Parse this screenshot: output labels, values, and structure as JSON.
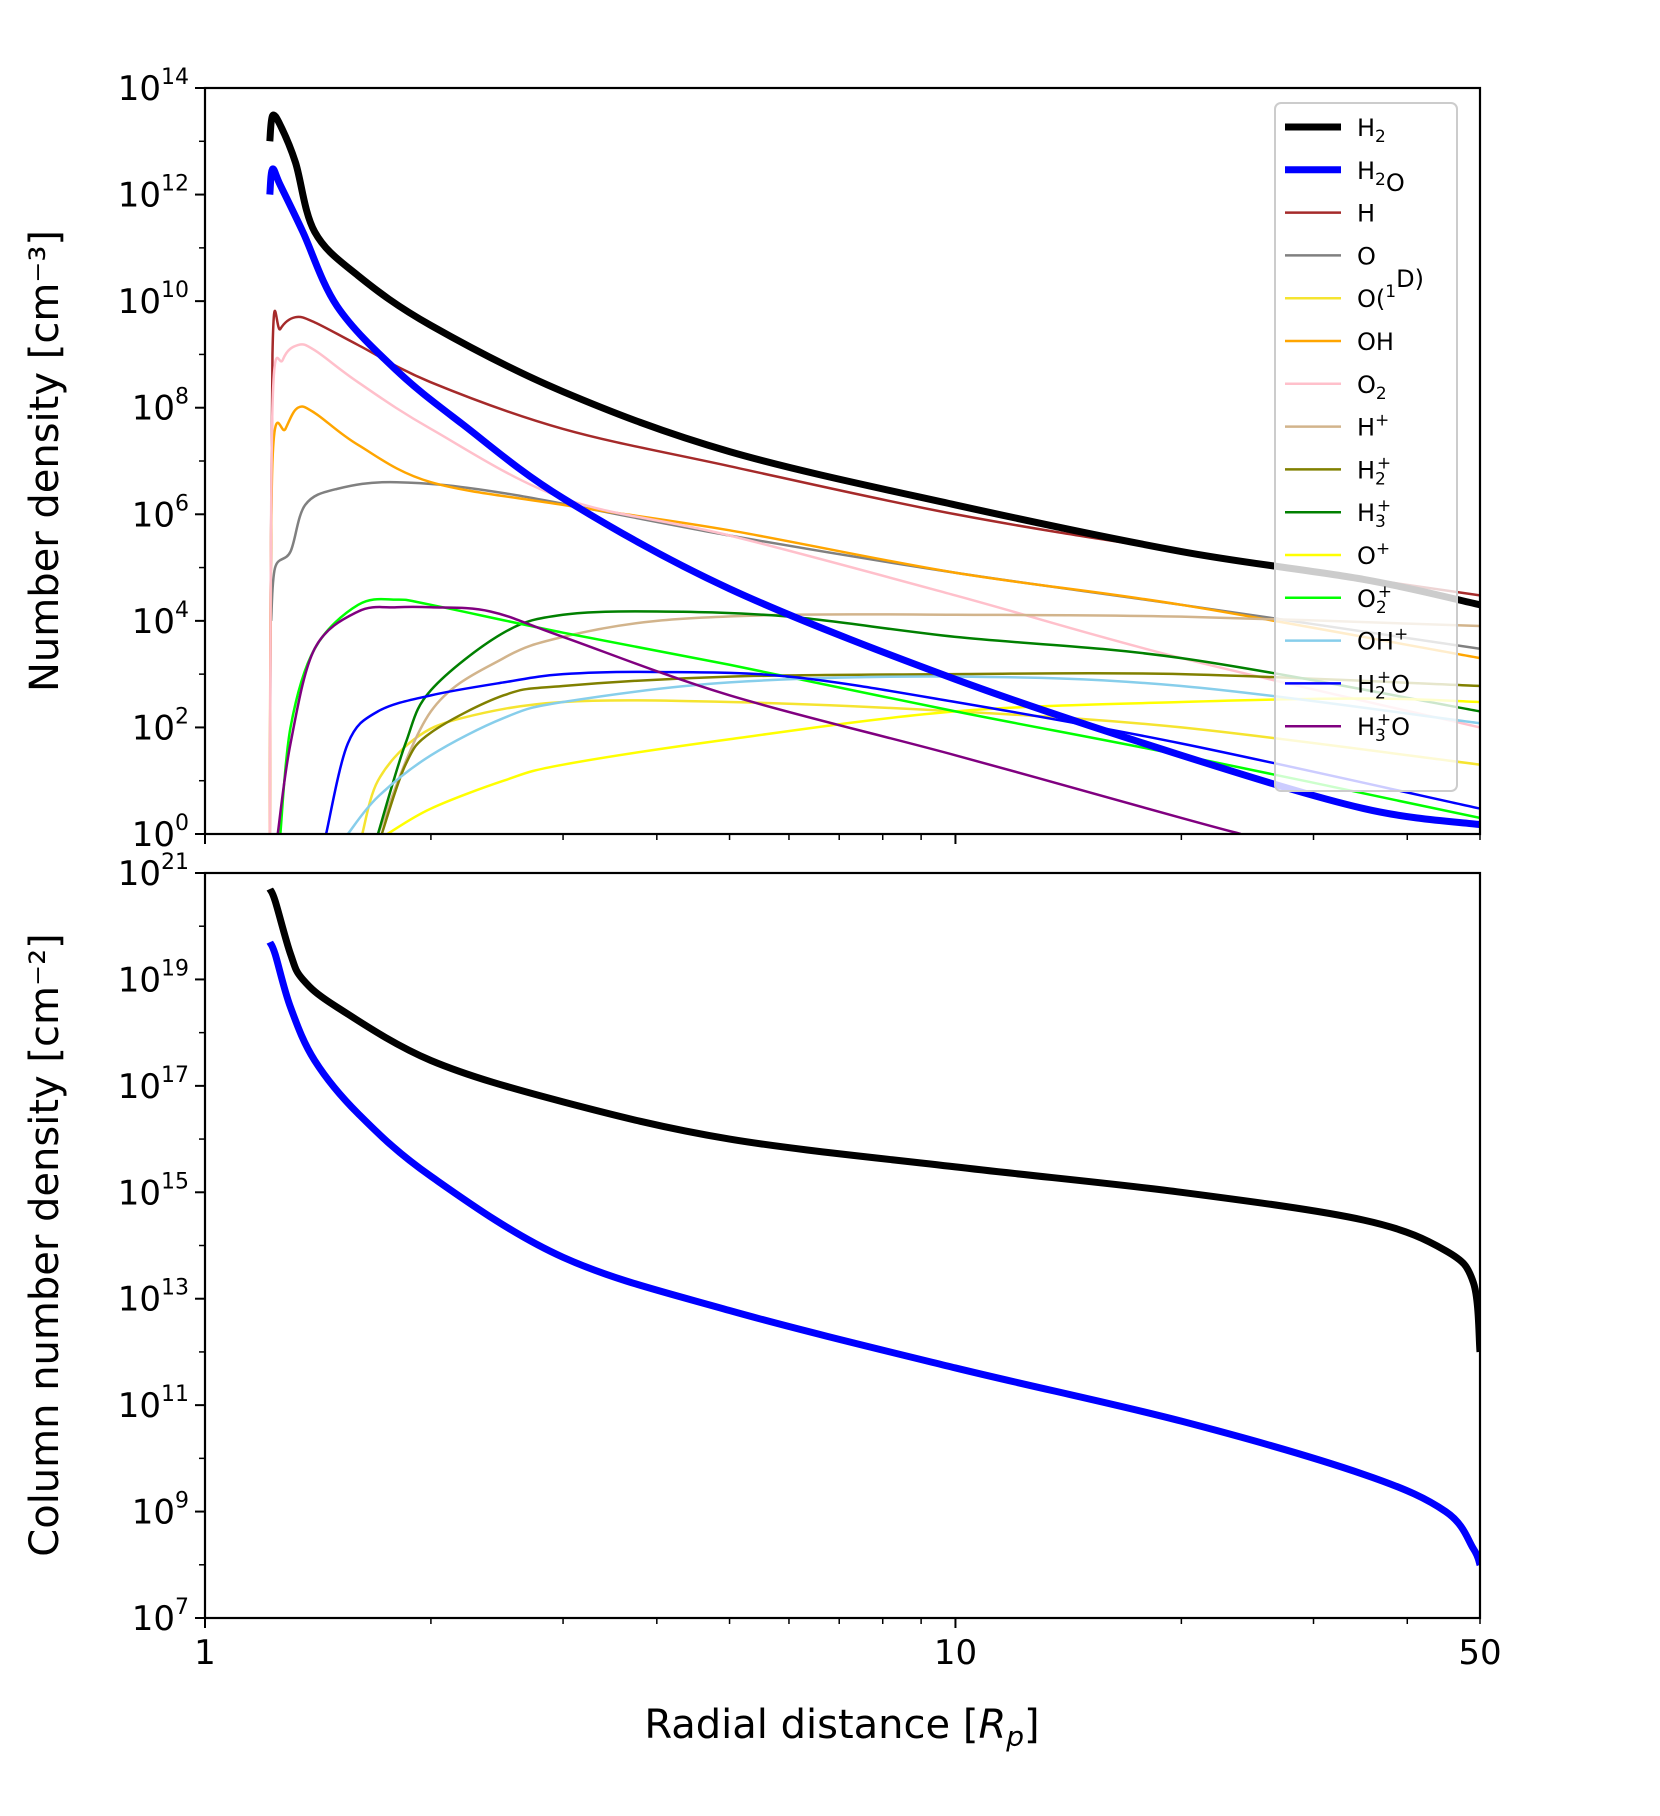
{
  "chart_data": [
    {
      "type": "line",
      "panel": "top",
      "title": "",
      "ylabel": "Number density [cm⁻³]",
      "xlabel": "",
      "xscale": "log",
      "yscale": "log",
      "xlim": [
        1,
        50
      ],
      "ylim": [
        1,
        100000000000000.0
      ],
      "y_ticks": [
        {
          "base": "10",
          "exp": "0"
        },
        {
          "base": "10",
          "exp": "2"
        },
        {
          "base": "10",
          "exp": "4"
        },
        {
          "base": "10",
          "exp": "6"
        },
        {
          "base": "10",
          "exp": "8"
        },
        {
          "base": "10",
          "exp": "10"
        },
        {
          "base": "10",
          "exp": "12"
        },
        {
          "base": "10",
          "exp": "14"
        }
      ],
      "legend_position": "top-right",
      "series": [
        {
          "name": "H2",
          "label_main": "H",
          "label_sub": "2",
          "label_sup": "",
          "label_tail": "",
          "color": "#000000",
          "width": 7,
          "x": [
            1.22,
            1.23,
            1.26,
            1.32,
            1.4,
            1.6,
            2.0,
            3.0,
            5.0,
            10,
            20,
            35,
            50
          ],
          "y": [
            10000000000000.0,
            30000000000000.0,
            20000000000000.0,
            4000000000000.0,
            200000000000.0,
            30000000000.0,
            3500000000.0,
            200000000.0,
            15000000.0,
            1500000.0,
            200000.0,
            60000.0,
            20000.0
          ]
        },
        {
          "name": "H2O",
          "label_main": "H",
          "label_sub": "2",
          "label_sup": "",
          "label_tail": "O",
          "color": "#0000ff",
          "width": 7,
          "x": [
            1.22,
            1.23,
            1.26,
            1.35,
            1.5,
            1.8,
            2.2,
            3.0,
            5.0,
            10,
            20,
            35,
            50
          ],
          "y": [
            1000000000000.0,
            3000000000000.0,
            1500000000000.0,
            200000000000.0,
            8000000000.0,
            500000000.0,
            50000000.0,
            2000000.0,
            40000.0,
            800.0,
            30.0,
            3,
            1.5
          ]
        },
        {
          "name": "H",
          "label_main": "H",
          "label_sub": "",
          "label_sup": "",
          "label_tail": "",
          "color": "#a52a2a",
          "width": 2.5,
          "x": [
            1.22,
            1.23,
            1.26,
            1.32,
            1.4,
            1.6,
            2.0,
            3.0,
            5.0,
            10,
            20,
            50
          ],
          "y": [
            1,
            1000000000.0,
            3000000000.0,
            5000000000.0,
            4000000000.0,
            1500000000.0,
            300000000.0,
            40000000.0,
            8000000.0,
            1000000.0,
            200000.0,
            30000.0
          ]
        },
        {
          "name": "O",
          "label_main": "O",
          "label_sub": "",
          "label_sup": "",
          "label_tail": "",
          "color": "#808080",
          "width": 2.5,
          "x": [
            1.225,
            1.24,
            1.3,
            1.36,
            1.5,
            1.8,
            2.5,
            5,
            10,
            20,
            50
          ],
          "y": [
            10000.0,
            100000.0,
            200000.0,
            1500000.0,
            3000000.0,
            4000000.0,
            2500000.0,
            400000.0,
            80000.0,
            20000.0,
            3000.0
          ]
        },
        {
          "name": "O(1D)",
          "label_main": "O(",
          "label_sub": "",
          "label_sup": "1",
          "label_tail": "D)",
          "color": "#f5e430",
          "width": 2.5,
          "x": [
            1.62,
            1.7,
            1.9,
            2.2,
            3.0,
            5,
            10,
            20,
            50
          ],
          "y": [
            1,
            10,
            60,
            150,
            300,
            300,
            200,
            100,
            20
          ]
        },
        {
          "name": "OH",
          "label_main": "OH",
          "label_sub": "",
          "label_sup": "",
          "label_tail": "",
          "color": "#ffa500",
          "width": 2.5,
          "x": [
            1.22,
            1.23,
            1.28,
            1.33,
            1.4,
            1.6,
            2.0,
            3.0,
            5,
            10,
            20,
            50
          ],
          "y": [
            1,
            10000000.0,
            40000000.0,
            100000000.0,
            80000000.0,
            20000000.0,
            4000000.0,
            1500000.0,
            500000.0,
            80000.0,
            20000.0,
            2000.0
          ]
        },
        {
          "name": "O2",
          "label_main": "O",
          "label_sub": "2",
          "label_sup": "",
          "label_tail": "",
          "color": "#ffc0cb",
          "width": 2.5,
          "x": [
            1.22,
            1.23,
            1.27,
            1.33,
            1.4,
            1.6,
            2.0,
            3.0,
            5,
            10,
            20,
            50
          ],
          "y": [
            1,
            100000000.0,
            800000000.0,
            1500000000.0,
            1200000000.0,
            300000000.0,
            40000000.0,
            2000000.0,
            400000.0,
            30000.0,
            2000.0,
            100
          ]
        },
        {
          "name": "H+",
          "label_main": "H",
          "label_sub": "",
          "label_sup": "+",
          "label_tail": "",
          "color": "#d2b48c",
          "width": 2.5,
          "x": [
            1.7,
            2.0,
            2.5,
            3.0,
            4.0,
            6,
            10,
            20,
            50
          ],
          "y": [
            1,
            200,
            2000,
            5000,
            10000.0,
            13000.0,
            13000.0,
            12000.0,
            8000.0
          ]
        },
        {
          "name": "H2+",
          "label_main": "H",
          "label_sub": "2",
          "label_sup": "+",
          "label_tail": "",
          "color": "#808000",
          "width": 2.5,
          "x": [
            1.72,
            1.85,
            2.0,
            2.5,
            3.0,
            5,
            10,
            20,
            50
          ],
          "y": [
            1,
            20,
            80,
            400,
            600,
            900,
            1000,
            1000,
            600
          ]
        },
        {
          "name": "H3+",
          "label_main": "H",
          "label_sub": "3",
          "label_sup": "+",
          "label_tail": "",
          "color": "#008000",
          "width": 2.5,
          "x": [
            1.7,
            1.85,
            2.0,
            2.5,
            3.0,
            4.0,
            6,
            10,
            20,
            50
          ],
          "y": [
            1,
            50,
            500,
            6000,
            13000.0,
            15000.0,
            12000.0,
            5000.0,
            2000.0,
            200
          ]
        },
        {
          "name": "O+",
          "label_main": "O",
          "label_sub": "",
          "label_sup": "+",
          "label_tail": "",
          "color": "#ffff00",
          "width": 2.5,
          "x": [
            1.75,
            2.0,
            2.5,
            3.0,
            5,
            10,
            20,
            35,
            50
          ],
          "y": [
            1,
            3,
            10,
            20,
            60,
            200,
            300,
            350,
            300
          ]
        },
        {
          "name": "O2+",
          "label_main": "O",
          "label_sub": "2",
          "label_sup": "+",
          "label_tail": "",
          "color": "#00ff00",
          "width": 2.5,
          "x": [
            1.26,
            1.3,
            1.4,
            1.6,
            1.8,
            2.0,
            3.0,
            5,
            10,
            20,
            50
          ],
          "y": [
            1,
            100,
            3000,
            20000.0,
            25000.0,
            20000.0,
            6000.0,
            1500,
            200,
            30,
            2
          ]
        },
        {
          "name": "OH+",
          "label_main": "OH",
          "label_sub": "",
          "label_sup": "+",
          "label_tail": "",
          "color": "#87ceeb",
          "width": 2.5,
          "x": [
            1.55,
            1.7,
            2.0,
            2.5,
            3.0,
            5,
            10,
            20,
            50
          ],
          "y": [
            1,
            5,
            30,
            150,
            300,
            700,
            900,
            600,
            120
          ]
        },
        {
          "name": "H2O+",
          "label_main": "H",
          "label_sub": "2",
          "label_sup": "+",
          "label_tail": "O",
          "color": "#0000ff",
          "width": 2.5,
          "x": [
            1.45,
            1.55,
            1.7,
            2.0,
            2.5,
            3.0,
            4.0,
            6,
            10,
            20,
            50
          ],
          "y": [
            1,
            50,
            200,
            400,
            700,
            1000,
            1100,
            900,
            300,
            50,
            3
          ]
        },
        {
          "name": "H3O+",
          "label_main": "H",
          "label_sub": "3",
          "label_sup": "+",
          "label_tail": "O",
          "color": "#800080",
          "width": 2.5,
          "x": [
            1.25,
            1.3,
            1.4,
            1.6,
            1.8,
            2.0,
            2.4,
            3.0,
            5,
            10,
            20,
            24
          ],
          "y": [
            1,
            50,
            3000,
            15000.0,
            18000.0,
            18000.0,
            15000.0,
            5000.0,
            400,
            30,
            2,
            1
          ]
        }
      ]
    },
    {
      "type": "line",
      "panel": "bottom",
      "title": "",
      "ylabel": "Column number density [cm⁻²]",
      "xlabel": "Radial distance [R_p]",
      "xscale": "log",
      "yscale": "log",
      "xlim": [
        1,
        50
      ],
      "ylim": [
        10000000.0,
        1e+21
      ],
      "x_ticks": [
        "1",
        "10",
        "50"
      ],
      "y_ticks": [
        {
          "base": "10",
          "exp": "7"
        },
        {
          "base": "10",
          "exp": "9"
        },
        {
          "base": "10",
          "exp": "11"
        },
        {
          "base": "10",
          "exp": "13"
        },
        {
          "base": "10",
          "exp": "15"
        },
        {
          "base": "10",
          "exp": "17"
        },
        {
          "base": "10",
          "exp": "19"
        },
        {
          "base": "10",
          "exp": "21"
        }
      ],
      "series": [
        {
          "name": "H2",
          "color": "#000000",
          "width": 7,
          "x": [
            1.22,
            1.24,
            1.3,
            1.35,
            1.5,
            2.0,
            3.0,
            5,
            10,
            20,
            35,
            45,
            49,
            50
          ],
          "y": [
            5e+20,
            3e+20,
            3e+19,
            1e+19,
            3e+18,
            3e+17,
            5e+16,
            1e+16,
            3000000000000000.0,
            1000000000000000.0,
            300000000000000.0,
            80000000000000.0,
            20000000000000.0,
            1000000000000.0
          ]
        },
        {
          "name": "H2O",
          "color": "#0000ff",
          "width": 7,
          "x": [
            1.22,
            1.24,
            1.3,
            1.4,
            1.6,
            2.0,
            3.0,
            5,
            10,
            20,
            35,
            45,
            49,
            50
          ],
          "y": [
            5e+19,
            3e+19,
            3e+18,
            3e+17,
            3e+16,
            2000000000000000.0,
            60000000000000.0,
            6000000000000.0,
            500000000000.0,
            50000000000.0,
            5000000000.0,
            1000000000.0,
            200000000.0,
            100000000.0
          ]
        }
      ]
    }
  ]
}
